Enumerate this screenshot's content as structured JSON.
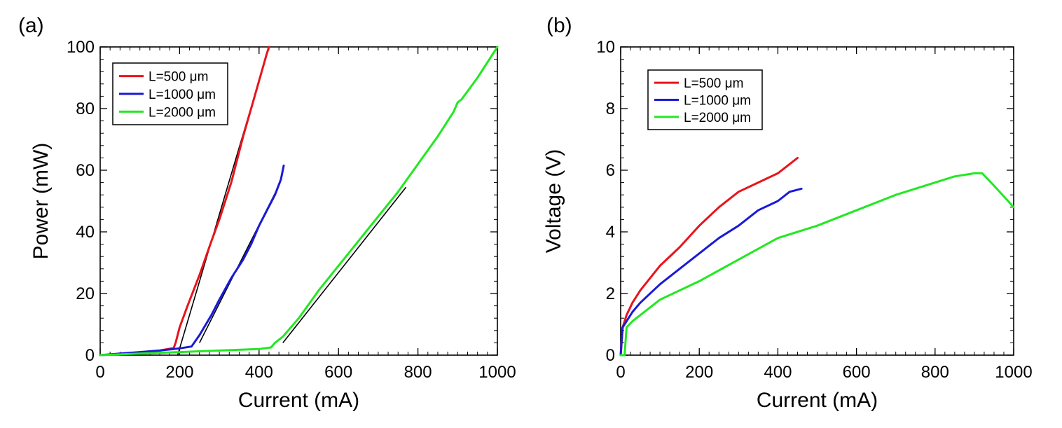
{
  "chart_data": [
    {
      "type": "line",
      "panel_label": "(a)",
      "xlabel": "Current (mA)",
      "ylabel": "Power (mW)",
      "xlim": [
        0,
        1000
      ],
      "ylim": [
        0,
        100
      ],
      "xticks": [
        0,
        200,
        400,
        600,
        800,
        1000
      ],
      "yticks": [
        0,
        20,
        40,
        60,
        80,
        100
      ],
      "grid": false,
      "legend_position": "top-left",
      "series": [
        {
          "name": "L=500 μm",
          "color": "#e8141c",
          "x": [
            0,
            50,
            100,
            150,
            185,
            190,
            200,
            220,
            250,
            280,
            300,
            330,
            360,
            380,
            400,
            420,
            425
          ],
          "y": [
            0,
            0.4,
            0.9,
            1.5,
            2.3,
            4,
            9,
            16,
            26,
            37,
            44,
            56,
            71,
            80,
            89,
            98,
            100
          ]
        },
        {
          "name": "L=1000 μm",
          "color": "#1a1ad6",
          "x": [
            0,
            50,
            100,
            150,
            200,
            230,
            250,
            280,
            300,
            330,
            360,
            380,
            400,
            420,
            440,
            455,
            462
          ],
          "y": [
            0,
            0.5,
            1.0,
            1.5,
            2.2,
            2.8,
            6.5,
            13,
            18,
            25,
            31,
            36,
            42,
            47,
            52,
            57,
            61.5
          ]
        },
        {
          "name": "L=2000 μm",
          "color": "#22e822",
          "x": [
            0,
            100,
            200,
            300,
            400,
            430,
            440,
            460,
            500,
            550,
            600,
            650,
            700,
            750,
            800,
            850,
            890,
            900,
            910,
            950,
            1000
          ],
          "y": [
            0,
            0.5,
            1.0,
            1.5,
            2.0,
            2.5,
            4,
            6,
            12,
            21,
            29,
            37,
            45,
            53,
            62,
            71,
            79,
            82,
            83,
            90,
            100
          ]
        }
      ],
      "fit_lines": [
        {
          "color": "#000000",
          "x": [
            195,
            425
          ],
          "y": [
            0,
            100
          ]
        },
        {
          "color": "#000000",
          "x": [
            250,
            450
          ],
          "y": [
            4,
            55
          ]
        },
        {
          "color": "#000000",
          "x": [
            460,
            770
          ],
          "y": [
            4,
            54.5
          ]
        }
      ]
    },
    {
      "type": "line",
      "panel_label": "(b)",
      "xlabel": "Current (mA)",
      "ylabel": "Voltage (V)",
      "xlim": [
        0,
        1000
      ],
      "ylim": [
        0,
        10
      ],
      "xticks": [
        0,
        200,
        400,
        600,
        800,
        1000
      ],
      "yticks": [
        0,
        2,
        4,
        6,
        8,
        10
      ],
      "grid": false,
      "legend_position": "top-left",
      "series": [
        {
          "name": "L=500 μm",
          "color": "#e8141c",
          "x": [
            0,
            5,
            15,
            30,
            50,
            100,
            150,
            200,
            250,
            300,
            350,
            400,
            450
          ],
          "y": [
            0,
            0.9,
            1.3,
            1.7,
            2.1,
            2.9,
            3.5,
            4.2,
            4.8,
            5.3,
            5.6,
            5.9,
            6.4
          ]
        },
        {
          "name": "L=1000 μm",
          "color": "#1a1ad6",
          "x": [
            0,
            5,
            15,
            30,
            50,
            100,
            150,
            200,
            250,
            300,
            350,
            400,
            430,
            460
          ],
          "y": [
            0,
            0.9,
            1.1,
            1.4,
            1.7,
            2.3,
            2.8,
            3.3,
            3.8,
            4.2,
            4.7,
            5.0,
            5.3,
            5.4
          ]
        },
        {
          "name": "L=2000 μm",
          "color": "#22e822",
          "x": [
            0,
            10,
            15,
            30,
            50,
            100,
            200,
            300,
            400,
            500,
            600,
            700,
            800,
            850,
            900,
            920,
            950,
            1000
          ],
          "y": [
            0,
            0,
            0.9,
            1.1,
            1.3,
            1.8,
            2.4,
            3.1,
            3.8,
            4.2,
            4.7,
            5.2,
            5.6,
            5.8,
            5.9,
            5.9,
            5.5,
            4.8
          ]
        }
      ]
    }
  ]
}
